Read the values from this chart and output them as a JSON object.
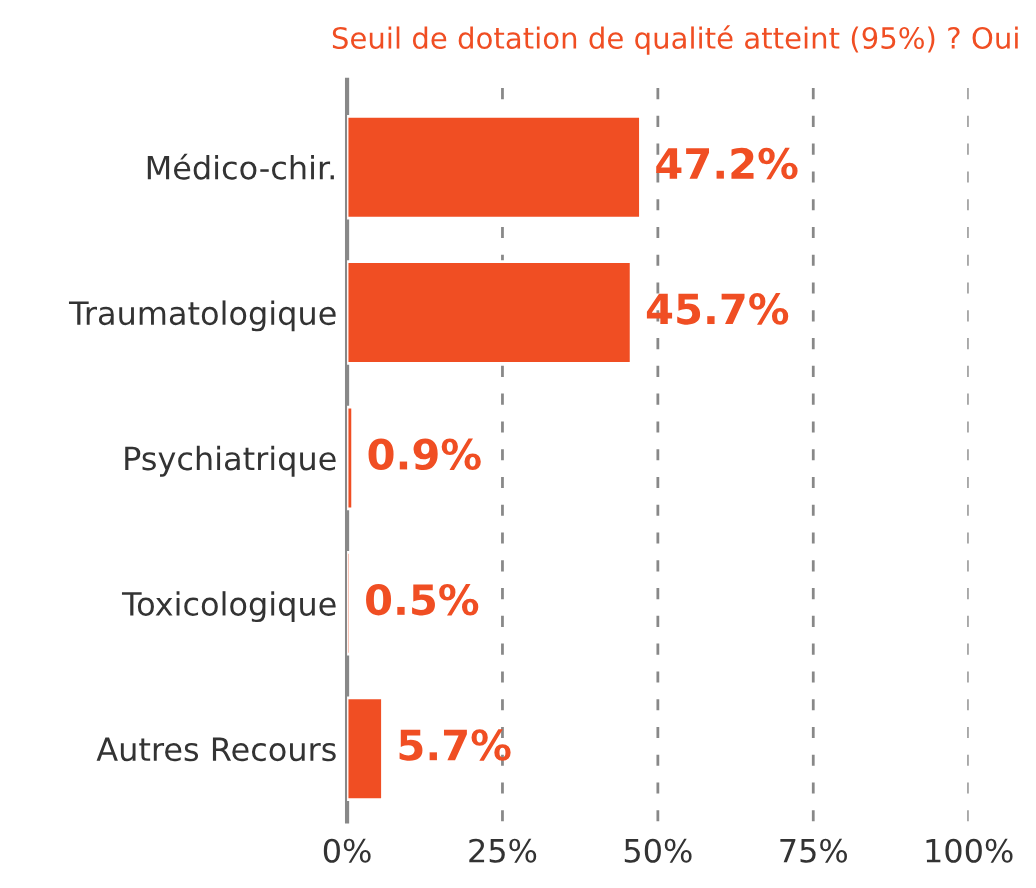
{
  "chart_data": {
    "type": "bar",
    "orientation": "horizontal",
    "subtitle": "Seuil de dotation de qualité atteint (95%) ? Oui",
    "categories": [
      "Médico-chir.",
      "Traumatologique",
      "Psychiatrique",
      "Toxicologique",
      "Autres Recours"
    ],
    "values": [
      47.2,
      45.7,
      0.9,
      0.5,
      5.7
    ],
    "color": "#f04e23",
    "value_labels": [
      "47.2%",
      "45.7%",
      "0.9%",
      "0.5%",
      "5.7%"
    ],
    "xlim": [
      0,
      100
    ],
    "xticks": [
      {
        "value": 0,
        "label": "0%"
      },
      {
        "value": 25,
        "label": "25%"
      },
      {
        "value": 50,
        "label": "50%"
      },
      {
        "value": 75,
        "label": "75%"
      },
      {
        "value": 100,
        "label": "100%"
      }
    ],
    "grid": "x"
  }
}
